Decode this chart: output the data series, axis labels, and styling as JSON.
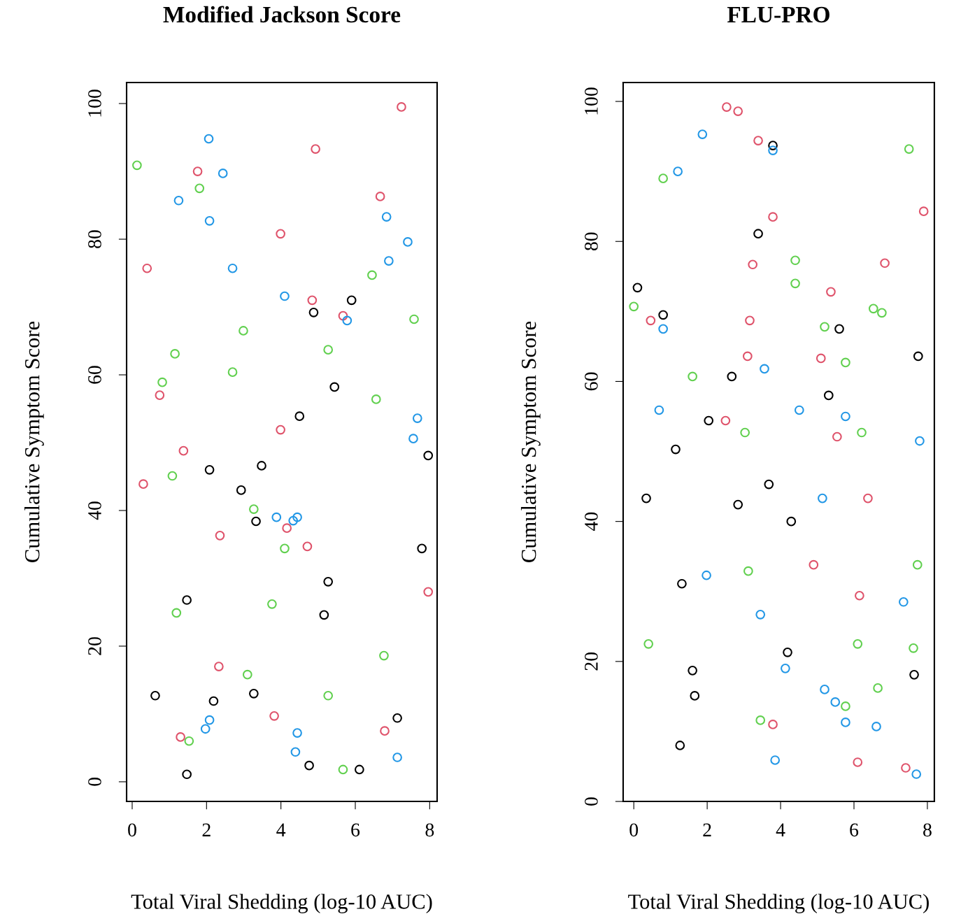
{
  "chart_data": [
    {
      "type": "scatter",
      "title": "Modified Jackson Score",
      "xlabel": "Total Viral Shedding (log-10 AUC)",
      "ylabel": "Cumulative Symptom Score",
      "xlim": [
        -0.15,
        8.2
      ],
      "ylim": [
        -2.9,
        103.1
      ],
      "xticks": [
        0,
        2,
        4,
        6,
        8
      ],
      "yticks": [
        0,
        20,
        40,
        60,
        80,
        100
      ],
      "marker": "circle",
      "grid": false,
      "legend": false,
      "series": [
        {
          "color": "#000000",
          "x": [
            0.62,
            1.47,
            1.47,
            2.08,
            2.19,
            2.93,
            3.27,
            3.33,
            3.48,
            4.5,
            4.76,
            4.88,
            5.16,
            5.27,
            5.44,
            5.9,
            6.11,
            7.13,
            7.79,
            7.96
          ],
          "values": [
            12.7,
            26.8,
            1.1,
            46.0,
            11.9,
            43.0,
            13.0,
            38.4,
            46.6,
            53.9,
            2.4,
            69.2,
            24.6,
            29.5,
            58.2,
            71.0,
            1.8,
            9.4,
            34.4,
            48.1
          ]
        },
        {
          "color": "#df536b",
          "x": [
            0.3,
            0.4,
            0.74,
            1.3,
            1.38,
            1.76,
            2.33,
            2.36,
            3.82,
            3.99,
            3.99,
            4.16,
            4.71,
            4.84,
            4.93,
            5.67,
            6.67,
            6.79,
            7.24,
            7.96
          ],
          "values": [
            43.9,
            75.7,
            57.0,
            6.6,
            48.8,
            90.0,
            17.0,
            36.3,
            9.7,
            80.8,
            51.9,
            37.4,
            34.7,
            71.0,
            93.3,
            68.7,
            86.3,
            7.5,
            99.5,
            28.0
          ]
        },
        {
          "color": "#61d04f",
          "x": [
            0.13,
            0.81,
            1.08,
            1.15,
            1.19,
            1.53,
            1.81,
            2.7,
            2.99,
            3.1,
            3.27,
            3.76,
            4.1,
            5.27,
            5.27,
            5.67,
            6.45,
            6.56,
            6.77,
            7.58
          ],
          "values": [
            90.9,
            58.9,
            45.1,
            63.1,
            24.9,
            6.0,
            87.5,
            60.4,
            66.5,
            15.8,
            40.2,
            26.2,
            34.4,
            63.7,
            12.7,
            1.8,
            74.7,
            56.4,
            18.6,
            68.2
          ]
        },
        {
          "color": "#2297e6",
          "x": [
            1.25,
            1.97,
            2.08,
            2.06,
            2.08,
            2.44,
            2.7,
            3.88,
            4.1,
            4.33,
            4.44,
            4.44,
            4.39,
            5.78,
            6.84,
            6.9,
            7.13,
            7.41,
            7.56,
            7.67
          ],
          "values": [
            85.7,
            7.8,
            9.1,
            94.8,
            82.7,
            89.7,
            75.7,
            39.0,
            71.6,
            38.5,
            39.0,
            7.2,
            4.4,
            68.0,
            83.3,
            76.8,
            3.6,
            79.6,
            50.6,
            53.6
          ]
        }
      ]
    },
    {
      "type": "scatter",
      "title": "FLU-PRO",
      "xlabel": "Total Viral Shedding (log-10 AUC)",
      "ylabel": "Cumulative Symptom Score",
      "xlim": [
        -0.29,
        8.19
      ],
      "ylim": [
        0,
        102.7
      ],
      "xticks": [
        0,
        2,
        4,
        6,
        8
      ],
      "yticks": [
        0,
        20,
        40,
        60,
        80,
        100
      ],
      "marker": "circle",
      "grid": false,
      "legend": false,
      "series": [
        {
          "color": "#000000",
          "x": [
            0.1,
            0.34,
            0.8,
            1.14,
            1.26,
            1.31,
            1.6,
            1.66,
            2.04,
            2.67,
            2.84,
            3.39,
            3.68,
            3.79,
            4.19,
            4.29,
            5.31,
            5.6,
            7.64,
            7.75
          ],
          "values": [
            73.4,
            43.3,
            69.5,
            50.3,
            8.0,
            31.1,
            18.7,
            15.1,
            54.4,
            60.7,
            42.4,
            81.1,
            45.3,
            93.7,
            21.3,
            40.0,
            58.0,
            67.5,
            18.1,
            63.6
          ]
        },
        {
          "color": "#df536b",
          "x": [
            0.46,
            2.5,
            2.53,
            2.84,
            3.16,
            3.1,
            3.24,
            3.39,
            3.79,
            3.79,
            4.9,
            5.1,
            5.37,
            5.54,
            6.15,
            6.1,
            6.38,
            6.84,
            7.41,
            7.9
          ],
          "values": [
            68.7,
            54.4,
            99.2,
            98.6,
            68.7,
            63.6,
            76.7,
            94.4,
            11.0,
            83.5,
            33.8,
            63.3,
            72.8,
            52.1,
            29.4,
            5.6,
            43.3,
            76.9,
            4.8,
            84.3
          ]
        },
        {
          "color": "#61d04f",
          "x": [
            0.0,
            0.4,
            0.8,
            1.6,
            3.03,
            3.12,
            3.45,
            4.4,
            4.4,
            5.2,
            5.77,
            5.77,
            6.1,
            6.21,
            6.53,
            6.65,
            6.76,
            7.5,
            7.62,
            7.73
          ],
          "values": [
            70.7,
            22.5,
            89.0,
            60.7,
            52.7,
            32.9,
            11.6,
            77.3,
            74.0,
            67.8,
            62.7,
            13.6,
            22.5,
            52.7,
            70.4,
            16.2,
            69.8,
            93.2,
            21.9,
            33.8
          ]
        },
        {
          "color": "#2297e6",
          "x": [
            0.69,
            0.8,
            1.2,
            1.87,
            1.98,
            3.45,
            3.56,
            3.79,
            3.85,
            4.13,
            4.51,
            5.14,
            5.2,
            5.49,
            5.77,
            5.77,
            6.61,
            7.35,
            7.7,
            7.79
          ],
          "values": [
            55.9,
            67.5,
            90.0,
            95.3,
            32.3,
            26.7,
            61.8,
            93.0,
            5.9,
            19.0,
            55.9,
            43.3,
            16.0,
            14.2,
            55.0,
            11.3,
            10.7,
            28.5,
            3.9,
            51.5
          ]
        }
      ]
    }
  ]
}
